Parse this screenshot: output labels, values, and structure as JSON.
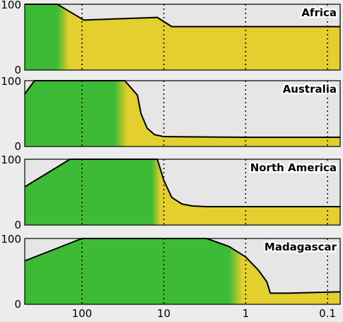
{
  "chart_data": {
    "type": "area",
    "x_scale": "log",
    "x_reversed": true,
    "xlim": [
      500,
      0.07
    ],
    "x_ticks": [
      100,
      10,
      1,
      0.1
    ],
    "x_tick_labels": [
      "100",
      "10",
      "1",
      "0.1"
    ],
    "ylim": [
      0,
      100
    ],
    "y_tick_labels": [
      "0",
      "100"
    ],
    "grid": "vertical dotted lines at x ticks",
    "colors": {
      "green": "#3dbb36",
      "yellow": "#e3cf2e",
      "background": "#e6e6e6",
      "outline": "#000000"
    },
    "panels": [
      {
        "label": "Africa",
        "green_until_x": 200,
        "yellow_from_x": 145,
        "points": [
          [
            500,
            100
          ],
          [
            200,
            100
          ],
          [
            95,
            76
          ],
          [
            12,
            80
          ],
          [
            8,
            66
          ],
          [
            0.07,
            66
          ]
        ]
      },
      {
        "label": "Australia",
        "green_until_x": 40,
        "yellow_from_x": 28,
        "points": [
          [
            500,
            80
          ],
          [
            380,
            100
          ],
          [
            30,
            100
          ],
          [
            21,
            78
          ],
          [
            19,
            50
          ],
          [
            16,
            28
          ],
          [
            13,
            18
          ],
          [
            10,
            15
          ],
          [
            1,
            14
          ],
          [
            0.07,
            14
          ]
        ]
      },
      {
        "label": "North America",
        "green_until_x": 14,
        "yellow_from_x": 11,
        "points": [
          [
            500,
            58
          ],
          [
            140,
            100
          ],
          [
            12,
            100
          ],
          [
            10,
            68
          ],
          [
            8,
            42
          ],
          [
            6,
            32
          ],
          [
            4.5,
            29
          ],
          [
            3,
            28
          ],
          [
            0.07,
            28
          ]
        ]
      },
      {
        "label": "Madagascar",
        "green_until_x": 1.6,
        "yellow_from_x": 1.1,
        "points": [
          [
            500,
            66
          ],
          [
            100,
            100
          ],
          [
            3,
            100
          ],
          [
            1.6,
            88
          ],
          [
            1.0,
            72
          ],
          [
            0.7,
            52
          ],
          [
            0.55,
            34
          ],
          [
            0.5,
            17
          ],
          [
            0.3,
            17
          ],
          [
            0.07,
            19
          ]
        ]
      }
    ]
  }
}
